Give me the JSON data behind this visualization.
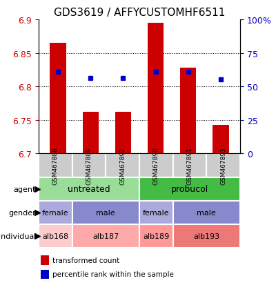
{
  "title": "GDS3619 / AFFYCUSTOMHF6511",
  "samples": [
    "GSM467888",
    "GSM467889",
    "GSM467892",
    "GSM467890",
    "GSM467891",
    "GSM467893"
  ],
  "red_values": [
    6.865,
    6.762,
    6.762,
    6.895,
    6.828,
    6.742
  ],
  "blue_values": [
    6.822,
    6.812,
    6.812,
    6.822,
    6.822,
    6.81
  ],
  "red_base": 6.7,
  "ylim": [
    6.7,
    6.9
  ],
  "yticks_left": [
    6.7,
    6.75,
    6.8,
    6.85,
    6.9
  ],
  "yticks_right": [
    0,
    25,
    50,
    75,
    100
  ],
  "ytick_labels_right": [
    "0",
    "25",
    "50",
    "75",
    "100%"
  ],
  "bar_width": 0.5,
  "red_color": "#CC0000",
  "blue_color": "#0000CC",
  "gray_bg": "#CCCCCC",
  "agent_spans": [
    [
      0,
      3,
      "untreated",
      "#99DD99"
    ],
    [
      3,
      6,
      "probucol",
      "#44BB44"
    ]
  ],
  "gender_spans": [
    [
      0,
      1,
      "female",
      "#AAAADD"
    ],
    [
      1,
      3,
      "male",
      "#8888CC"
    ],
    [
      3,
      4,
      "female",
      "#AAAADD"
    ],
    [
      4,
      6,
      "male",
      "#8888CC"
    ]
  ],
  "individual_spans": [
    [
      0,
      1,
      "alb168",
      "#FFCCCC"
    ],
    [
      1,
      3,
      "alb187",
      "#FFAAAA"
    ],
    [
      3,
      4,
      "alb189",
      "#FF9999"
    ],
    [
      4,
      6,
      "alb193",
      "#EE7777"
    ]
  ],
  "row_labels": [
    "agent",
    "gender",
    "individual"
  ],
  "legend_labels": [
    "transformed count",
    "percentile rank within the sample"
  ]
}
